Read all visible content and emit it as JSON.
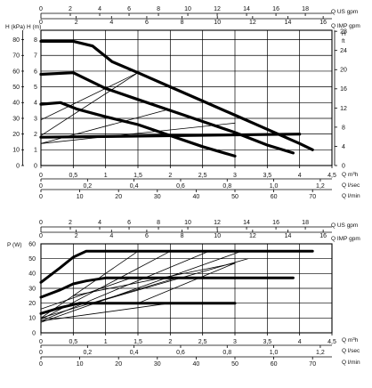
{
  "chart_data": [
    {
      "type": "line",
      "id": "head",
      "left_axis_labels": {
        "kpa": "H (kPa)",
        "m": "H (m)"
      },
      "right_axis_labels": {
        "h": "H",
        "ft": "ft"
      },
      "top_axis_labels": {
        "us_gpm": "Q US gpm",
        "imp_gpm": "Q IMP gpm"
      },
      "bottom_axis_labels": {
        "m3h": "Q m³h",
        "lsec": "Q l/sec",
        "lmin": "Q l/min"
      },
      "xlim": [
        0,
        4.5
      ],
      "ylim": [
        0,
        8.6
      ],
      "axes": {
        "us_gpm": {
          "ticks": [
            0,
            2,
            4,
            6,
            8,
            10,
            12,
            14,
            16,
            18
          ]
        },
        "imp_gpm": {
          "ticks": [
            0,
            2,
            4,
            6,
            8,
            10,
            12,
            14,
            16
          ]
        },
        "kpa": {
          "ticks": [
            0,
            10,
            20,
            30,
            40,
            50,
            60,
            70,
            80
          ]
        },
        "m": {
          "ticks": [
            0,
            1,
            2,
            3,
            4,
            5,
            6,
            7,
            8
          ]
        },
        "ft": {
          "ticks": [
            0,
            4,
            8,
            12,
            16,
            20,
            24,
            28
          ]
        },
        "m3h": {
          "ticks": [
            "0",
            "0,5",
            "1",
            "1,5",
            "2",
            "2,5",
            "3",
            "3,5",
            "4",
            "4,5"
          ]
        },
        "lsec": {
          "ticks": [
            "0",
            "0,2",
            "0,4",
            "0,6",
            "0,8",
            "1,0",
            "1,2"
          ]
        },
        "lmin": {
          "ticks": [
            0,
            10,
            20,
            30,
            40,
            50,
            60,
            70
          ]
        }
      },
      "series": [
        {
          "x": [
            0,
            0.5,
            0.8,
            1.1,
            1.5,
            2.0,
            2.5,
            3.0,
            3.5,
            4.0,
            4.2
          ],
          "y": [
            7.9,
            7.9,
            7.6,
            6.6,
            5.9,
            5.0,
            4.1,
            3.2,
            2.3,
            1.4,
            1.0
          ]
        },
        {
          "x": [
            0,
            0.5,
            0.7,
            1.0,
            1.5,
            2.0,
            2.5,
            3.0,
            3.5,
            3.9
          ],
          "y": [
            5.8,
            5.9,
            5.5,
            4.9,
            4.2,
            3.5,
            2.8,
            2.1,
            1.3,
            0.8
          ]
        },
        {
          "x": [
            0,
            0.3,
            0.55,
            1.0,
            1.5,
            2.0,
            2.5,
            3.0
          ],
          "y": [
            3.9,
            4.0,
            3.6,
            3.1,
            2.6,
            1.9,
            1.2,
            0.6
          ]
        },
        {
          "x": [
            0,
            4.0
          ],
          "y": [
            1.8,
            2.0
          ]
        }
      ],
      "thin_lines": [
        {
          "x": [
            0,
            1.5
          ],
          "y": [
            1.9,
            5.9
          ]
        },
        {
          "x": [
            0,
            1.5
          ],
          "y": [
            2.9,
            5.9
          ]
        },
        {
          "x": [
            0,
            2.0
          ],
          "y": [
            1.4,
            3.6
          ]
        },
        {
          "x": [
            0,
            3.0
          ],
          "y": [
            1.4,
            2.7
          ]
        }
      ]
    },
    {
      "type": "line",
      "id": "power",
      "left_axis_label": "P (W)",
      "top_axis_labels": {
        "us_gpm": "Q US gpm",
        "imp_gpm": "Q IMP gpm"
      },
      "bottom_axis_labels": {
        "m3h": "Q m³h",
        "lsec": "Q l/sec",
        "lmin": "Q l/min"
      },
      "xlim": [
        0,
        4.5
      ],
      "ylim": [
        0,
        60
      ],
      "axes": {
        "w": {
          "ticks": [
            0,
            10,
            20,
            30,
            40,
            50,
            60
          ]
        }
      },
      "series": [
        {
          "x": [
            0,
            0.3,
            0.5,
            0.7,
            1.0,
            4.2
          ],
          "y": [
            34,
            44,
            51,
            55,
            55,
            55
          ]
        },
        {
          "x": [
            0,
            0.3,
            0.5,
            0.7,
            1.0,
            1.5,
            3.9
          ],
          "y": [
            24,
            29,
            33,
            35,
            37,
            37,
            37
          ]
        },
        {
          "x": [
            0,
            0.3,
            0.6,
            1.0,
            3.0
          ],
          "y": [
            13,
            17,
            20,
            20,
            20
          ]
        }
      ],
      "thin_lines": [
        {
          "x": [
            0,
            1.5
          ],
          "y": [
            10,
            55
          ]
        },
        {
          "x": [
            0,
            2.0
          ],
          "y": [
            9,
            55
          ]
        },
        {
          "x": [
            0,
            2.6
          ],
          "y": [
            8,
            55
          ]
        },
        {
          "x": [
            0,
            3.1
          ],
          "y": [
            7,
            55
          ]
        },
        {
          "x": [
            0,
            1.4
          ],
          "y": [
            16,
            37
          ]
        },
        {
          "x": [
            0,
            2.1
          ],
          "y": [
            10,
            37
          ]
        },
        {
          "x": [
            0,
            2.0
          ],
          "y": [
            8,
            20
          ]
        },
        {
          "x": [
            0.8,
            3.2
          ],
          "y": [
            20,
            50
          ]
        },
        {
          "x": [
            0.5,
            3.0
          ],
          "y": [
            25,
            47
          ]
        },
        {
          "x": [
            1.5,
            3.0
          ],
          "y": [
            20,
            47
          ]
        }
      ]
    }
  ]
}
